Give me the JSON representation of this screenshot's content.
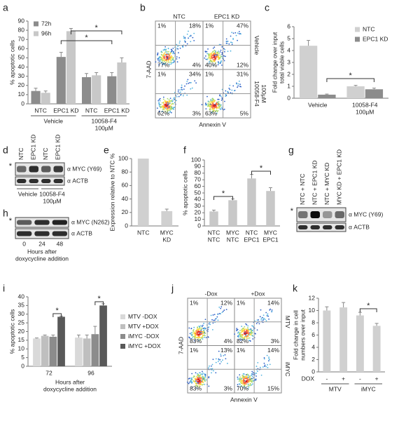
{
  "chart_data": [
    {
      "panel": "a",
      "type": "bar",
      "ylabel": [
        "% apoptotic cells"
      ],
      "ylim": [
        0,
        90
      ],
      "yticks": [
        0,
        10,
        20,
        30,
        40,
        50,
        60,
        70,
        80,
        90
      ],
      "categories": [
        "NTC",
        "EPC1 KD",
        "NTC",
        "EPC1 KD"
      ],
      "groups": [
        [
          "Vehicle"
        ],
        [
          "10058-F4",
          "100µM"
        ]
      ],
      "series": [
        {
          "name": "72h",
          "color": "#8c8c8c",
          "values": [
            14,
            51,
            29,
            30
          ],
          "errors": [
            3,
            5,
            4,
            4
          ]
        },
        {
          "name": "96h",
          "color": "#c8c8c8",
          "values": [
            12,
            79,
            31,
            45
          ],
          "errors": [
            2,
            3,
            3,
            5
          ]
        }
      ],
      "legend": "upper left",
      "annotations": [
        "*",
        "*"
      ]
    },
    {
      "panel": "c",
      "type": "bar",
      "ylabel": [
        "Fold change over input",
        "total viable cells"
      ],
      "ylim": [
        0,
        6
      ],
      "yticks": [
        0,
        1,
        2,
        3,
        4,
        5,
        6
      ],
      "categories": [
        [
          "Vehicle"
        ],
        [
          "10058-F4",
          "100µM"
        ]
      ],
      "series": [
        {
          "name": "NTC",
          "color": "#d0d0d0",
          "values": [
            4.4,
            1.0
          ],
          "errors": [
            0.45,
            0.08
          ]
        },
        {
          "name": "EPC1 KD",
          "color": "#8c8c8c",
          "values": [
            0.3,
            0.75
          ],
          "errors": [
            0.05,
            0.1
          ]
        }
      ],
      "legend": "upper right",
      "annotations": [
        "*"
      ]
    },
    {
      "panel": "e",
      "type": "bar",
      "ylabel": [
        "Expression relative to NTC %"
      ],
      "ylim": [
        0,
        100
      ],
      "yticks": [
        0,
        20,
        40,
        60,
        80,
        100
      ],
      "categories": [
        "NTC",
        [
          "MYC",
          "KD"
        ]
      ],
      "values": [
        100,
        22
      ],
      "errors": [
        null,
        3
      ],
      "color": "#d0d0d0"
    },
    {
      "panel": "f",
      "type": "bar",
      "ylabel": [
        "% apoptotic cells"
      ],
      "ylim": [
        0,
        100
      ],
      "yticks": [
        0,
        10,
        20,
        30,
        40,
        50,
        60,
        70,
        80,
        90,
        100
      ],
      "categories": [
        [
          "NTC",
          "NTC"
        ],
        [
          "MYC",
          "NTC"
        ],
        [
          "NTC",
          "EPC1"
        ],
        [
          "MYC",
          "EPC1"
        ]
      ],
      "values": [
        22,
        39,
        72,
        53
      ],
      "errors": [
        2,
        2,
        6,
        5
      ],
      "color": "#c8c8c8",
      "annotations": [
        "*",
        "*"
      ]
    },
    {
      "panel": "i",
      "type": "bar",
      "ylabel": [
        "% apoptotic cells"
      ],
      "ylim": [
        0,
        40
      ],
      "yticks": [
        0,
        5,
        10,
        15,
        20,
        25,
        30,
        35,
        40
      ],
      "categories": [
        "72",
        "96"
      ],
      "xlabel": [
        "Hours after",
        "doxycycline addition"
      ],
      "series": [
        {
          "name": "MTV -DOX",
          "color": "#d9d9d9",
          "values": [
            16,
            16.5
          ],
          "errors": [
            0.3,
            1.5
          ]
        },
        {
          "name": "MTV +DOX",
          "color": "#bfbfbf",
          "values": [
            17.5,
            16
          ],
          "errors": [
            0.5,
            2
          ]
        },
        {
          "name": "iMYC -DOX",
          "color": "#8c8c8c",
          "values": [
            17,
            18.5
          ],
          "errors": [
            1,
            4.5
          ]
        },
        {
          "name": "iMYC +DOX",
          "color": "#595959",
          "values": [
            28.5,
            35
          ],
          "errors": [
            0.4,
            1
          ]
        }
      ],
      "legend": "right",
      "annotations": [
        "*",
        "*"
      ]
    },
    {
      "panel": "k",
      "type": "bar",
      "ylabel": [
        "Fold change in cell",
        "numbers over input"
      ],
      "ylim": [
        0,
        12
      ],
      "yticks": [
        0,
        2,
        4,
        6,
        8,
        10,
        12
      ],
      "categories": [
        "-",
        "+",
        "-",
        "+"
      ],
      "x_row_label": "DOX",
      "groups": [
        [
          "MTV"
        ],
        [
          "iMYC"
        ]
      ],
      "values": [
        10,
        10.5,
        9.2,
        7.5
      ],
      "errors": [
        0.6,
        0.8,
        0.5,
        0.4
      ],
      "color": "#d0d0d0",
      "annotations": [
        "*"
      ]
    }
  ],
  "flow": [
    {
      "panel": "b",
      "columns": [
        "NTC",
        "EPC1 KD"
      ],
      "rows": [
        "Vehicle",
        [
          "10058-F4",
          "100µM"
        ]
      ],
      "y_axis": "7-AAD",
      "x_axis": "Annexin V",
      "plots": [
        [
          "1%",
          "18%",
          "77%",
          "4%"
        ],
        [
          "1%",
          "47%",
          "40%",
          "12%"
        ],
        [
          "1%",
          "34%",
          "62%",
          "3%"
        ],
        [
          "1%",
          "31%",
          "63%",
          "5%"
        ]
      ]
    },
    {
      "panel": "j",
      "columns": [
        "-Dox",
        "+Dox"
      ],
      "rows": [
        "MTV",
        "iMYC"
      ],
      "y_axis": "7-AAD",
      "x_axis": "Annexin V",
      "plots": [
        [
          "1%",
          "12%",
          "83%",
          "4%"
        ],
        [
          "1%",
          "14%",
          "82%",
          "3%"
        ],
        [
          "1%",
          "13%",
          "83%",
          "3%"
        ],
        [
          "1%",
          "14%",
          "70%",
          "15%"
        ]
      ]
    }
  ],
  "blots": [
    {
      "panel": "d",
      "lanes": [
        "NTC",
        "EPC1 KD",
        "NTC",
        "EPC1 KD"
      ],
      "bands": [
        "α MYC (Y69)",
        "α ACTB"
      ],
      "marker": "*",
      "groups": [
        [
          "Vehicle"
        ],
        [
          "10058-F4",
          "100µM"
        ]
      ]
    },
    {
      "panel": "g",
      "lanes": [
        "NTC + NTC",
        "NTC + EPC1 KD",
        "NTC + MYC KD",
        "MYC KD + EPC1 KD"
      ],
      "bands": [
        "α MYC (Y69)",
        "α ACTB"
      ],
      "marker": "*"
    },
    {
      "panel": "h",
      "lanes": [
        "0",
        "24",
        "48"
      ],
      "bands": [
        "α MYC (N262)",
        "α ACTB"
      ],
      "marker": "*",
      "xlabel": [
        "Hours after",
        "doxycycline addition"
      ]
    }
  ]
}
